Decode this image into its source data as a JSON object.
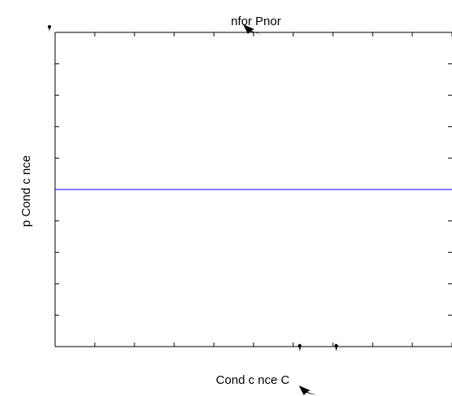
{
  "chart_data": {
    "type": "line",
    "title": "nfor Pnor",
    "xlabel": "Cond c nce C",
    "ylabel": "p Cond c nce",
    "series": [
      {
        "x": [
          0,
          1
        ],
        "y": [
          0.5,
          0.5
        ],
        "color": "#0000ff"
      }
    ],
    "xlim": [
      0,
      1
    ],
    "ylim": [
      0,
      1
    ],
    "x_tick_count": 11,
    "y_tick_count": 11,
    "grid": false,
    "legend": "none"
  },
  "colors": {
    "axes": "#000000",
    "series": "#0000ff",
    "background": "#ffffff"
  },
  "icons": {
    "glyph_mark": "comma-glyph-icon",
    "arrow_mark": "arrow-glyph-icon"
  }
}
